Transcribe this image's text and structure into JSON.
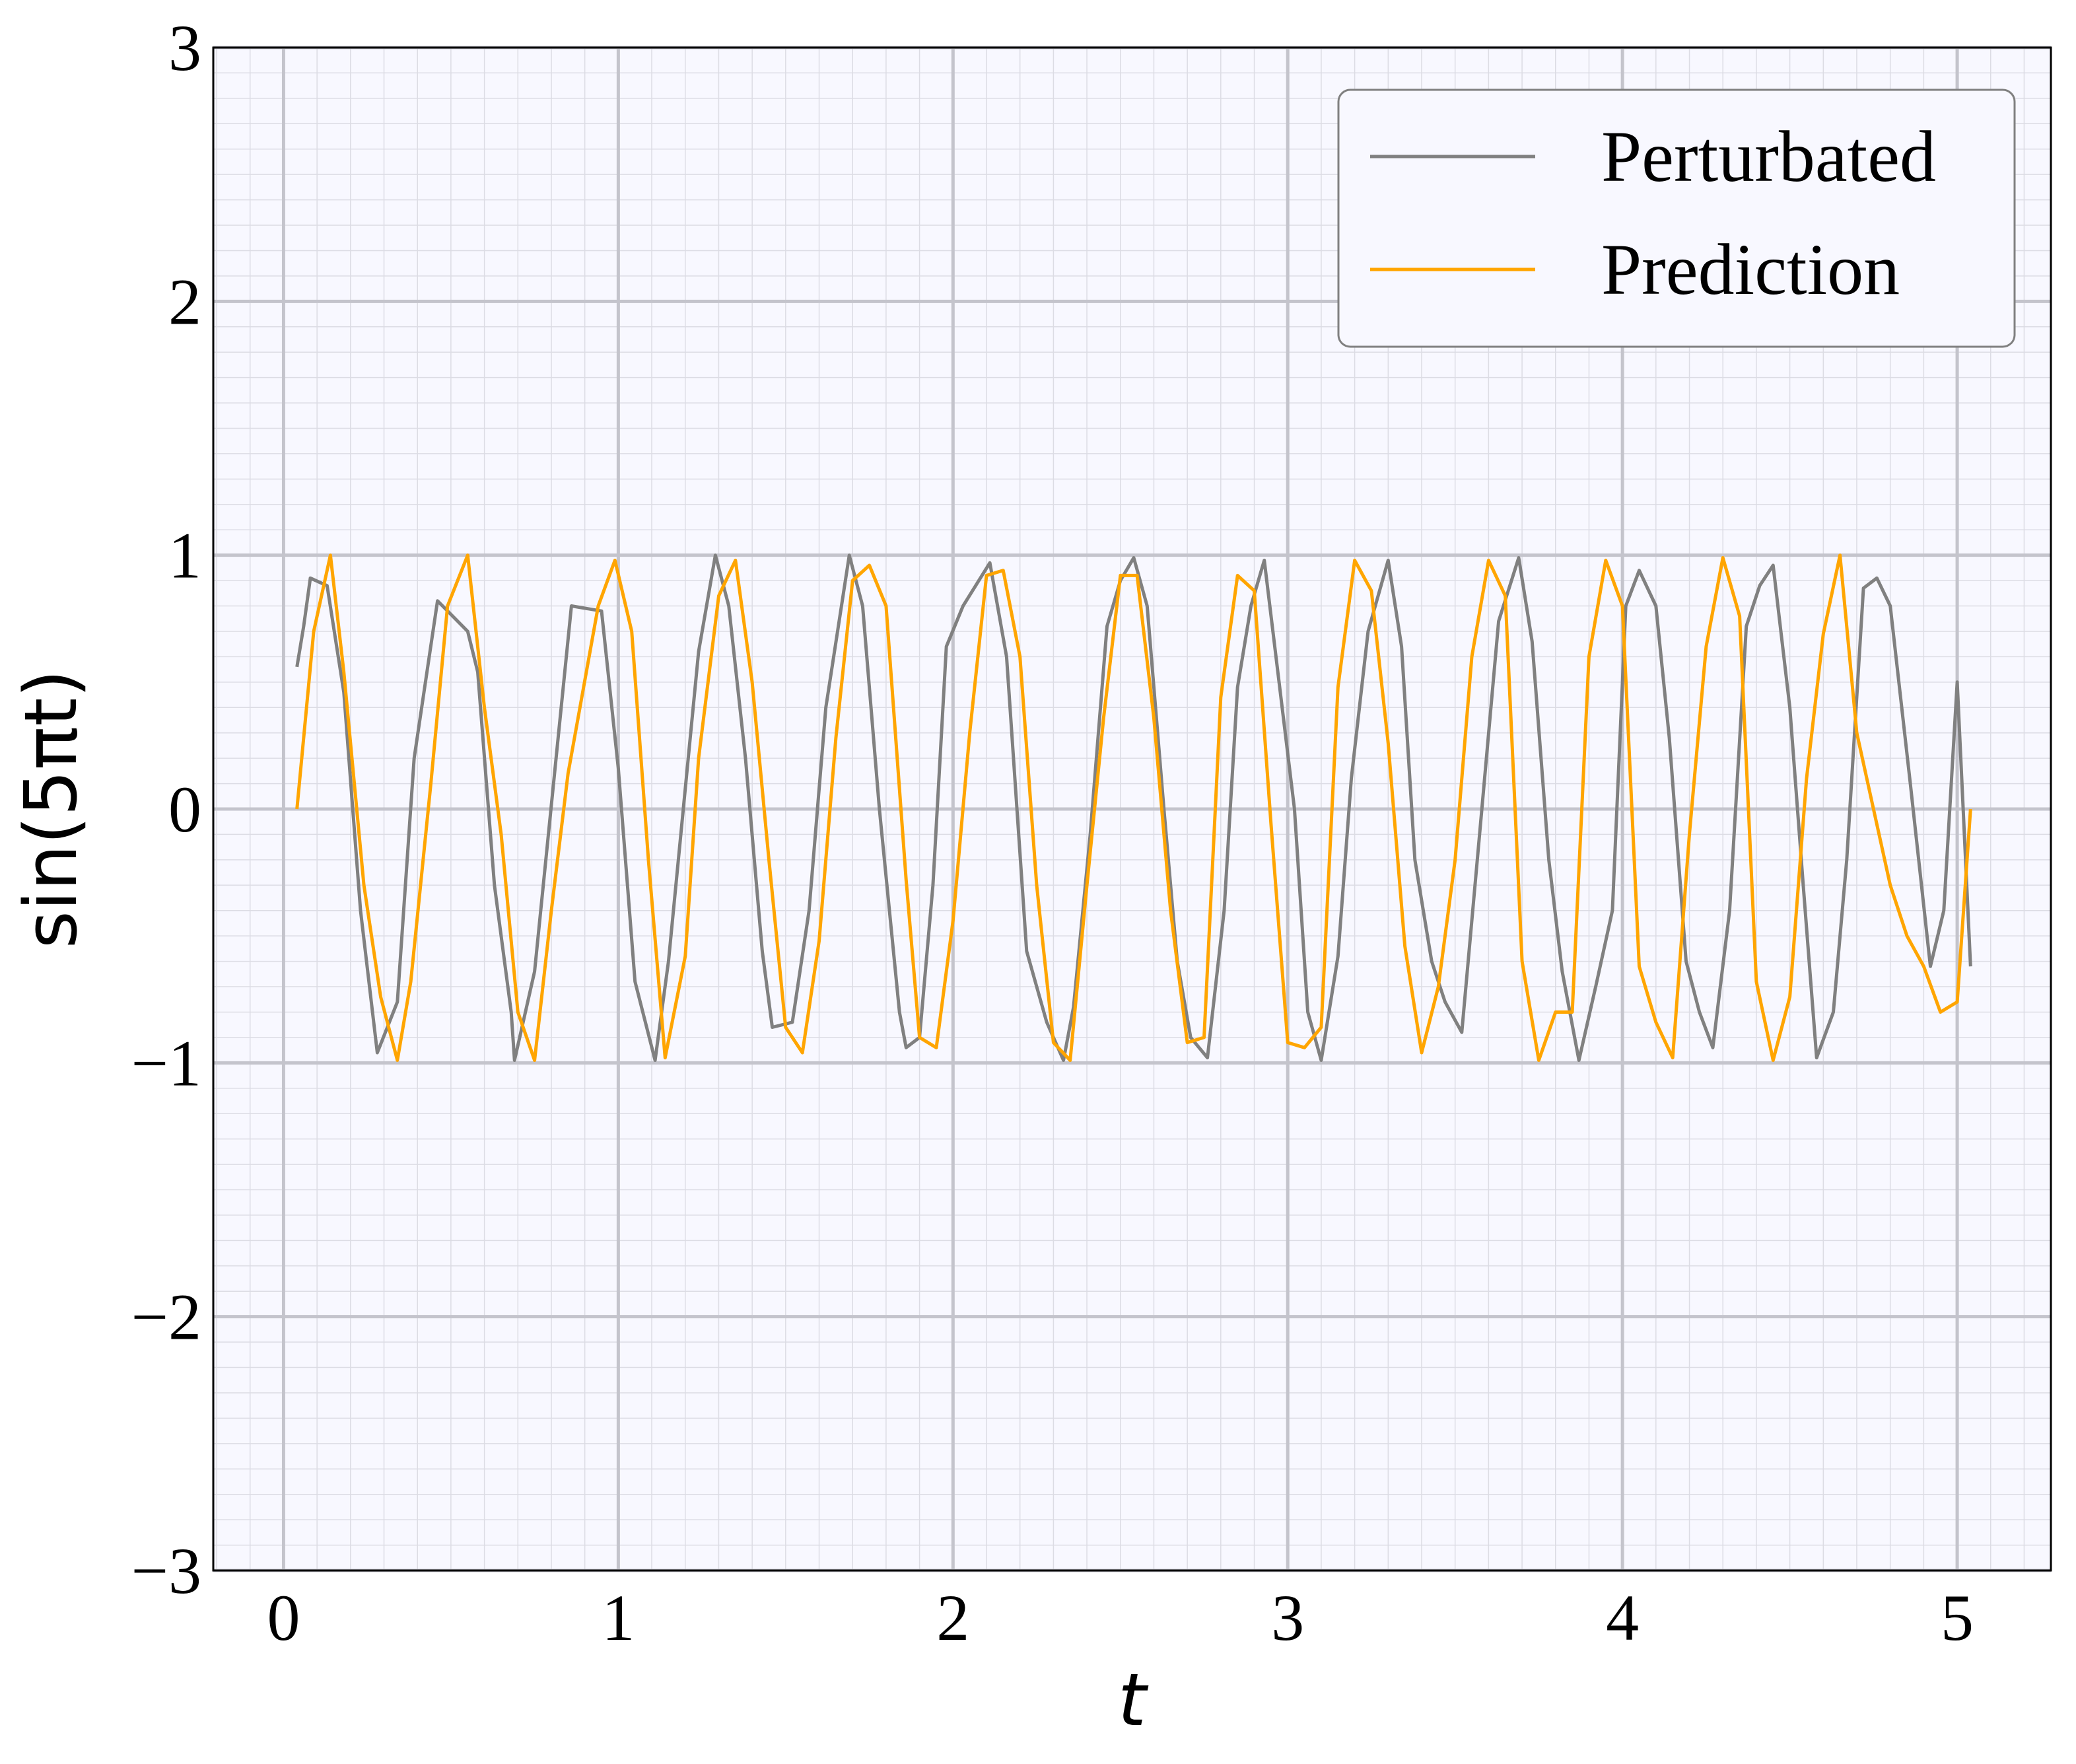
{
  "chart_data": {
    "type": "line",
    "xlabel": "t",
    "ylabel": "sin(5πt)",
    "xlim": [
      -0.21,
      5.28
    ],
    "ylim": [
      -3,
      3
    ],
    "xticks": [
      0,
      1,
      2,
      3,
      4,
      5
    ],
    "yticks": [
      -3,
      -2,
      -1,
      0,
      1,
      2,
      3
    ],
    "xtick_labels": [
      "0",
      "1",
      "2",
      "3",
      "4",
      "5"
    ],
    "ytick_labels": [
      "−3",
      "−2",
      "−1",
      "0",
      "1",
      "2",
      "3"
    ],
    "grid": true,
    "minor_grid": true,
    "legend_position": "top-right",
    "series": [
      {
        "name": "Perturbated",
        "color": "#808080",
        "x": [
          0.04,
          0.06,
          0.08,
          0.13,
          0.18,
          0.23,
          0.28,
          0.34,
          0.39,
          0.46,
          0.55,
          0.58,
          0.63,
          0.68,
          0.69,
          0.75,
          0.86,
          0.95,
          1.0,
          1.05,
          1.11,
          1.15,
          1.24,
          1.29,
          1.33,
          1.38,
          1.43,
          1.46,
          1.52,
          1.57,
          1.62,
          1.69,
          1.73,
          1.78,
          1.84,
          1.86,
          1.9,
          1.94,
          1.98,
          2.03,
          2.11,
          2.16,
          2.22,
          2.28,
          2.33,
          2.36,
          2.41,
          2.46,
          2.5,
          2.54,
          2.58,
          2.63,
          2.67,
          2.71,
          2.76,
          2.81,
          2.85,
          2.89,
          2.93,
          3.02,
          3.06,
          3.1,
          3.15,
          3.19,
          3.24,
          3.3,
          3.34,
          3.38,
          3.43,
          3.47,
          3.52,
          3.58,
          3.63,
          3.69,
          3.73,
          3.78,
          3.82,
          3.87,
          3.92,
          3.97,
          4.01,
          4.05,
          4.1,
          4.14,
          4.19,
          4.23,
          4.27,
          4.32,
          4.37,
          4.41,
          4.45,
          4.5,
          4.54,
          4.58,
          4.63,
          4.67,
          4.72,
          4.76,
          4.8,
          4.86,
          4.92,
          4.96,
          5.0,
          5.04
        ],
        "y": [
          0.56,
          0.72,
          0.91,
          0.88,
          0.46,
          -0.4,
          -0.96,
          -0.76,
          0.2,
          0.82,
          0.7,
          0.54,
          -0.3,
          -0.8,
          -0.99,
          -0.64,
          0.8,
          0.78,
          0.16,
          -0.68,
          -0.99,
          -0.6,
          0.62,
          1.0,
          0.8,
          0.2,
          -0.56,
          -0.86,
          -0.84,
          -0.4,
          0.4,
          1.0,
          0.8,
          0.0,
          -0.8,
          -0.94,
          -0.9,
          -0.3,
          0.64,
          0.8,
          0.97,
          0.6,
          -0.56,
          -0.84,
          -0.99,
          -0.78,
          -0.1,
          0.72,
          0.9,
          0.99,
          0.8,
          0.0,
          -0.6,
          -0.9,
          -0.98,
          -0.4,
          0.48,
          0.8,
          0.98,
          0.0,
          -0.8,
          -0.99,
          -0.58,
          0.12,
          0.7,
          0.98,
          0.64,
          -0.2,
          -0.6,
          -0.76,
          -0.88,
          0.0,
          0.74,
          0.99,
          0.66,
          -0.2,
          -0.64,
          -0.99,
          -0.7,
          -0.4,
          0.8,
          0.94,
          0.8,
          0.28,
          -0.6,
          -0.8,
          -0.94,
          -0.4,
          0.72,
          0.88,
          0.96,
          0.4,
          -0.3,
          -0.98,
          -0.8,
          -0.2,
          0.87,
          0.91,
          0.8,
          0.1,
          -0.62,
          -0.4,
          0.5,
          -0.62
        ]
      },
      {
        "name": "Prediction",
        "color": "#FFA500",
        "x": [
          0.04,
          0.09,
          0.14,
          0.18,
          0.24,
          0.29,
          0.34,
          0.38,
          0.44,
          0.49,
          0.55,
          0.6,
          0.65,
          0.7,
          0.75,
          0.8,
          0.85,
          0.94,
          0.99,
          1.04,
          1.09,
          1.14,
          1.2,
          1.24,
          1.3,
          1.35,
          1.4,
          1.45,
          1.5,
          1.55,
          1.6,
          1.65,
          1.7,
          1.75,
          1.8,
          1.86,
          1.9,
          1.95,
          2.0,
          2.05,
          2.1,
          2.15,
          2.2,
          2.25,
          2.3,
          2.35,
          2.4,
          2.45,
          2.5,
          2.55,
          2.6,
          2.65,
          2.7,
          2.75,
          2.8,
          2.85,
          2.9,
          2.95,
          3.0,
          3.05,
          3.1,
          3.15,
          3.2,
          3.25,
          3.3,
          3.35,
          3.4,
          3.45,
          3.5,
          3.55,
          3.6,
          3.65,
          3.7,
          3.75,
          3.8,
          3.85,
          3.9,
          3.95,
          4.0,
          4.05,
          4.1,
          4.15,
          4.2,
          4.25,
          4.3,
          4.35,
          4.4,
          4.45,
          4.5,
          4.55,
          4.6,
          4.65,
          4.7,
          4.75,
          4.8,
          4.85,
          4.9,
          4.95,
          5.0,
          5.04
        ],
        "y": [
          0.0,
          0.7,
          1.0,
          0.54,
          -0.3,
          -0.74,
          -0.99,
          -0.68,
          0.1,
          0.8,
          1.0,
          0.4,
          -0.1,
          -0.8,
          -0.99,
          -0.4,
          0.14,
          0.8,
          0.98,
          0.7,
          -0.2,
          -0.98,
          -0.58,
          0.2,
          0.84,
          0.98,
          0.5,
          -0.2,
          -0.86,
          -0.96,
          -0.52,
          0.28,
          0.9,
          0.96,
          0.8,
          -0.28,
          -0.9,
          -0.94,
          -0.44,
          0.3,
          0.92,
          0.94,
          0.6,
          -0.3,
          -0.92,
          -0.99,
          -0.3,
          0.36,
          0.92,
          0.92,
          0.36,
          -0.4,
          -0.92,
          -0.9,
          0.44,
          0.92,
          0.86,
          -0.06,
          -0.92,
          -0.94,
          -0.86,
          0.48,
          0.98,
          0.86,
          0.26,
          -0.54,
          -0.96,
          -0.7,
          -0.2,
          0.6,
          0.98,
          0.84,
          -0.6,
          -0.99,
          -0.8,
          -0.8,
          0.6,
          0.98,
          0.8,
          -0.62,
          -0.84,
          -0.98,
          -0.1,
          0.64,
          0.99,
          0.76,
          -0.68,
          -0.99,
          -0.74,
          0.12,
          0.69,
          1.0,
          0.3,
          0.0,
          -0.3,
          -0.5,
          -0.62,
          -0.8,
          -0.76,
          0.0
        ]
      }
    ]
  }
}
